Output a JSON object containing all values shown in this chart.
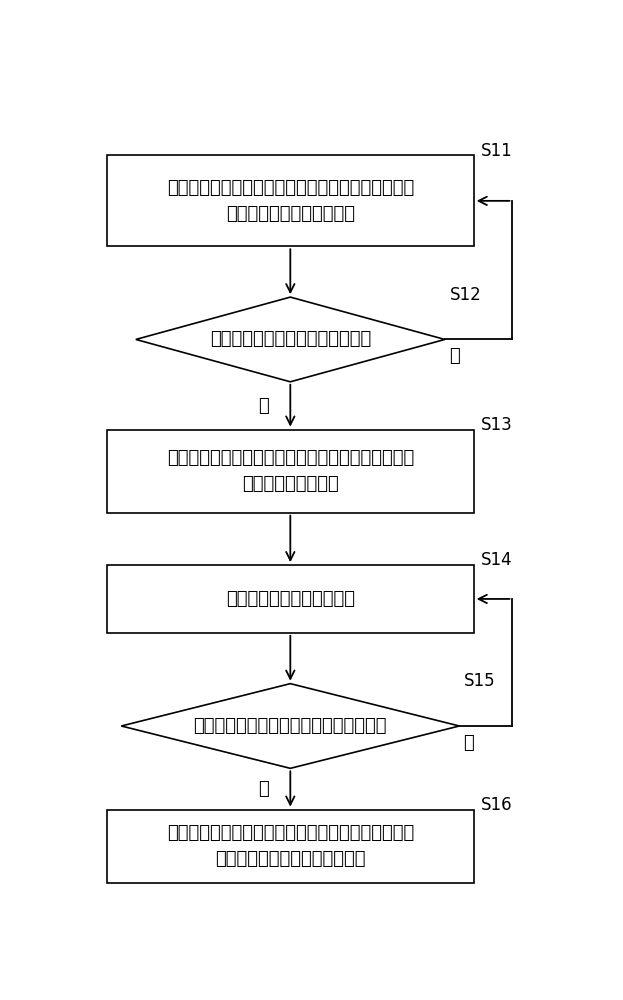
{
  "bg_color": "#ffffff",
  "box_edge_color": "#000000",
  "arrow_color": "#000000",
  "text_color": "#000000",
  "font_size": 13,
  "step_font_size": 12,
  "no_label": "否",
  "yes_label": "是",
  "s11_text": "控制执行对普通样本的自动进样流程，其中自动进样\n流程至少包括两个进样阶段",
  "s12_text": "判断是否有急诊样本进样触发事件",
  "s13_text": "暂停普通样本的自动进样流程，并保存普通样本在暂\n停时所处的进样阶段",
  "s14_text": "执行对急诊样本的进样流程",
  "s15_text": "判断是否有急诊样本的进样完成触发事件",
  "s16_text": "根据保存的普通样本在暂停时所处的进样阶段，继续\n执行对普通样本的自动进样流程"
}
